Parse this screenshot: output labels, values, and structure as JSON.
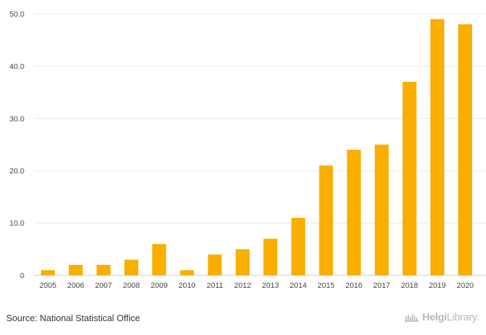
{
  "chart_data": {
    "type": "bar",
    "categories": [
      "2005",
      "2006",
      "2007",
      "2008",
      "2009",
      "2010",
      "2011",
      "2012",
      "2013",
      "2014",
      "2015",
      "2016",
      "2017",
      "2018",
      "2019",
      "2020"
    ],
    "values": [
      1,
      2,
      2,
      3,
      6,
      1,
      4,
      5,
      7,
      11,
      21,
      24,
      25,
      37,
      49,
      48
    ],
    "y_ticks": [
      "0",
      "10.0",
      "20.0",
      "30.0",
      "40.0",
      "50.0"
    ],
    "ylim": [
      0,
      50
    ],
    "bar_color": "#f9ae00",
    "grid_color": "#e6e6e6",
    "title": "",
    "xlabel": "",
    "ylabel": ""
  },
  "footer": {
    "source": "Source: National Statistical Office",
    "brand_main": "Helgi",
    "brand_suffix": "Library."
  },
  "icons": {
    "brand_logo": "helgi-library-logo-icon"
  }
}
